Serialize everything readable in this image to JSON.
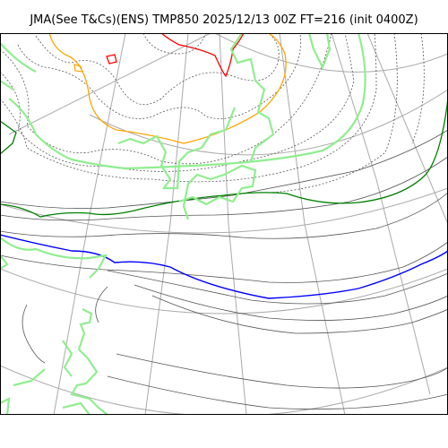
{
  "title": "JMA(See T&Cs)(ENS) TMP850 2025/12/13 00Z FT=216 (init 0400Z)",
  "colors": {
    "coastline": "#90ee90",
    "graticule": "#aaaaaa",
    "contour_solid": "#555555",
    "contour_dotted": "#555555",
    "isotherm_orange": "#ffa500",
    "isotherm_green": "#008000",
    "isotherm_blue": "#0000ff",
    "isotherm_red": "#ff0000",
    "frame": "#000000"
  }
}
